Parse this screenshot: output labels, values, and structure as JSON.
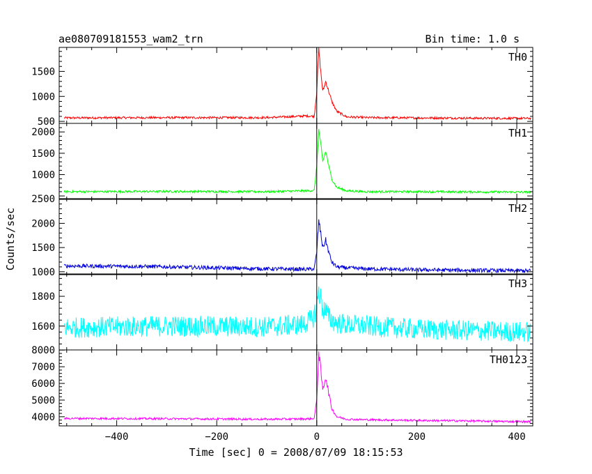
{
  "header": {
    "title": "ae080709181553_wam2_trn",
    "bin_time": "Bin time: 1.0 s"
  },
  "chart_data": {
    "type": "line",
    "xlabel": "Time [sec] 0 = 2008/07/09 18:15:53",
    "ylabel": "Counts/sec",
    "xlim": [
      -515,
      432
    ],
    "xticks": [
      -400,
      -200,
      0,
      200,
      400
    ],
    "grid": false,
    "panels": [
      {
        "name": "TH0",
        "color": "#ff0000",
        "ylim": [
          460,
          1980
        ],
        "yticks": [
          500,
          1000,
          1500
        ],
        "baseline": 570,
        "noise": 22,
        "x": [
          -500,
          -300,
          -100,
          -40,
          -20,
          -5,
          0,
          4,
          8,
          12,
          18,
          24,
          30,
          40,
          60,
          100,
          200,
          300,
          420
        ],
        "y": [
          570,
          575,
          575,
          600,
          610,
          600,
          1100,
          1950,
          1500,
          1100,
          1300,
          1100,
          900,
          700,
          590,
          575,
          570,
          565,
          560
        ]
      },
      {
        "name": "TH1",
        "color": "#00ff00",
        "ylim": [
          420,
          2200
        ],
        "yticks": [
          1000,
          1500,
          2000
        ],
        "baseline": 600,
        "noise": 25,
        "x": [
          -500,
          -300,
          -100,
          -20,
          -5,
          0,
          4,
          8,
          12,
          18,
          24,
          30,
          40,
          60,
          100,
          200,
          300,
          420
        ],
        "y": [
          600,
          605,
          600,
          620,
          630,
          1200,
          2050,
          1700,
          1300,
          1550,
          1200,
          900,
          700,
          620,
          600,
          600,
          595,
          590
        ]
      },
      {
        "name": "TH2",
        "color": "#0000dd",
        "ylim": [
          940,
          2510
        ],
        "yticks": [
          1000,
          1500,
          2000
        ],
        "baseline_label": "2500",
        "noise": 40,
        "x": [
          -500,
          -350,
          -200,
          -100,
          -20,
          -5,
          0,
          4,
          8,
          12,
          18,
          24,
          30,
          40,
          60,
          100,
          200,
          300,
          420
        ],
        "y": [
          1120,
          1110,
          1080,
          1060,
          1050,
          1060,
          1400,
          2050,
          1800,
          1500,
          1650,
          1400,
          1200,
          1100,
          1080,
          1060,
          1040,
          1030,
          1020
        ]
      },
      {
        "name": "TH3",
        "color": "#00ffff",
        "ylim": [
          1440,
          1950
        ],
        "yticks": [
          1600,
          1800
        ],
        "noise": 70,
        "x": [
          -500,
          -300,
          -100,
          -30,
          -10,
          0,
          4,
          8,
          12,
          18,
          24,
          30,
          40,
          60,
          100,
          200,
          300,
          420
        ],
        "y": [
          1590,
          1600,
          1595,
          1610,
          1640,
          1720,
          1850,
          1780,
          1720,
          1700,
          1660,
          1640,
          1620,
          1610,
          1600,
          1580,
          1570,
          1560
        ]
      },
      {
        "name": "TH0123",
        "color": "#ff00ff",
        "ylim": [
          3450,
          8010
        ],
        "yticks": [
          4000,
          5000,
          6000,
          7000,
          8000
        ],
        "noise": 60,
        "x": [
          -500,
          -300,
          -100,
          -20,
          -5,
          0,
          4,
          8,
          12,
          18,
          24,
          30,
          40,
          60,
          100,
          200,
          300,
          420
        ],
        "y": [
          3900,
          3880,
          3850,
          3870,
          3900,
          5000,
          7900,
          6800,
          5600,
          6400,
          5400,
          4500,
          4000,
          3850,
          3820,
          3780,
          3750,
          3700
        ]
      }
    ]
  }
}
